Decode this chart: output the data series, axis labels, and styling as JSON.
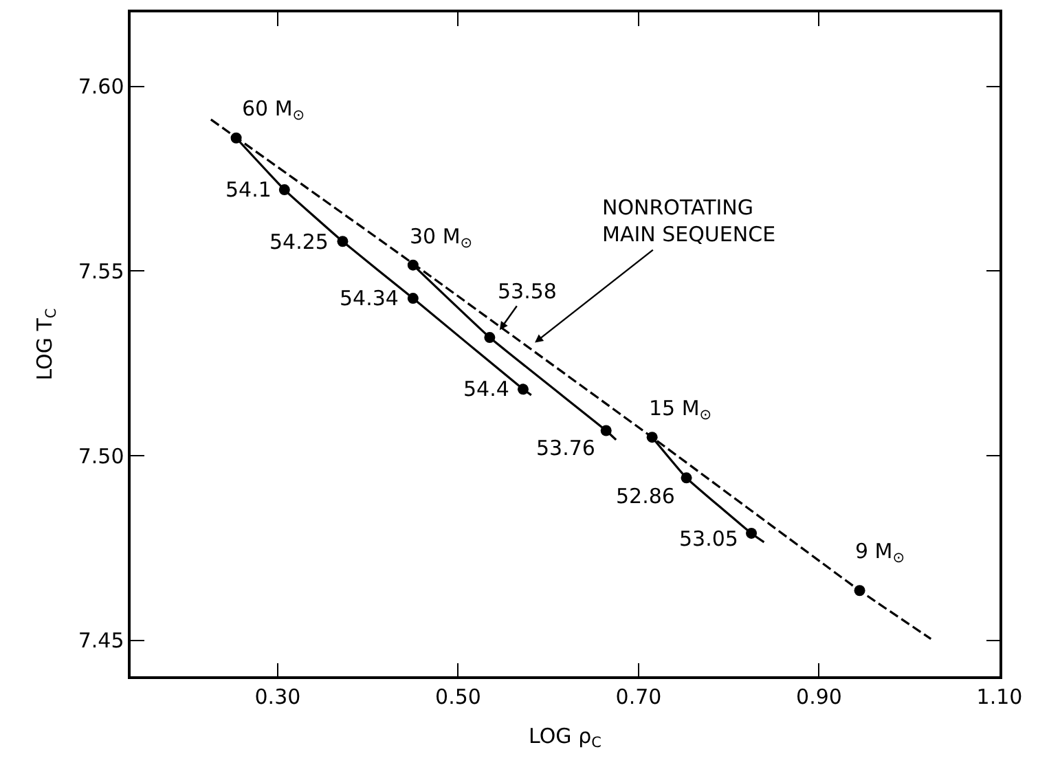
{
  "chart_data": {
    "type": "line",
    "xlabel": "LOG ρ$_{C}$",
    "ylabel": "LOG T$_{C}$",
    "xlim": [
      0.137,
      1.1
    ],
    "ylim": [
      7.4403,
      7.62
    ],
    "xticks": [
      {
        "value": 0.3,
        "label": "0.30"
      },
      {
        "value": 0.5,
        "label": "0.50"
      },
      {
        "value": 0.7,
        "label": "0.70"
      },
      {
        "value": 0.9,
        "label": "0.90"
      },
      {
        "value": 1.1,
        "label": "1.10"
      }
    ],
    "yticks": [
      {
        "value": 7.45,
        "label": "7.45"
      },
      {
        "value": 7.5,
        "label": "7.50"
      },
      {
        "value": 7.55,
        "label": "7.55"
      },
      {
        "value": 7.6,
        "label": "7.60"
      }
    ],
    "series": [
      {
        "color": "#000000",
        "line_style": "dashed",
        "marker": "none",
        "x": [
          0.226,
          0.45,
          0.715,
          0.945,
          1.024
        ],
        "values": [
          7.591,
          7.552,
          7.505,
          7.4635,
          7.4504
        ]
      },
      {
        "color": "#000000",
        "line_style": "solid",
        "marker": "none",
        "x": [
          0.254,
          0.3075,
          0.372,
          0.45,
          0.572,
          0.581
        ],
        "values": [
          7.586,
          7.572,
          7.558,
          7.5426,
          7.518,
          7.5164
        ]
      },
      {
        "color": "#000000",
        "line_style": "solid",
        "marker": "none",
        "x": [
          0.45,
          0.535,
          0.664,
          0.675
        ],
        "values": [
          7.5516,
          7.532,
          7.5068,
          7.5043
        ]
      },
      {
        "color": "#000000",
        "line_style": "solid",
        "marker": "none",
        "x": [
          0.715,
          0.753,
          0.825,
          0.839
        ],
        "values": [
          7.505,
          7.494,
          7.479,
          7.4766
        ]
      },
      {
        "type": "scatter",
        "color": "#000000",
        "marker": "circle",
        "x": [
          0.254,
          0.3075,
          0.372,
          0.45,
          0.45,
          0.535,
          0.572,
          0.664,
          0.715,
          0.753,
          0.825,
          0.945
        ],
        "values": [
          7.586,
          7.572,
          7.558,
          7.5516,
          7.5426,
          7.532,
          7.518,
          7.5068,
          7.505,
          7.494,
          7.479,
          7.4635
        ]
      }
    ],
    "annotations": [
      {
        "text": "60 M$_{⊙}$",
        "x": 0.254,
        "y": 7.586
      },
      {
        "text": "30 M$_{⊙}$",
        "x": 0.45,
        "y": 7.5516
      },
      {
        "text": "15 M$_{⊙}$",
        "x": 0.715,
        "y": 7.505
      },
      {
        "text": "9 M$_{⊙}$",
        "x": 0.945,
        "y": 7.4635
      },
      {
        "text": "54.1",
        "x": 0.3075,
        "y": 7.572
      },
      {
        "text": "54.25",
        "x": 0.372,
        "y": 7.558
      },
      {
        "text": "54.34",
        "x": 0.45,
        "y": 7.5426
      },
      {
        "text": "54.4",
        "x": 0.572,
        "y": 7.518
      },
      {
        "text": "53.76",
        "x": 0.664,
        "y": 7.5068
      },
      {
        "text": "52.86",
        "x": 0.753,
        "y": 7.494
      },
      {
        "text": "53.05",
        "x": 0.825,
        "y": 7.479
      },
      {
        "text": "53.58",
        "x": 0.546,
        "y": 7.534
      },
      {
        "text": "NONROTATING\nMAIN SEQUENCE",
        "x": 0.585,
        "y": 7.5306
      }
    ]
  }
}
